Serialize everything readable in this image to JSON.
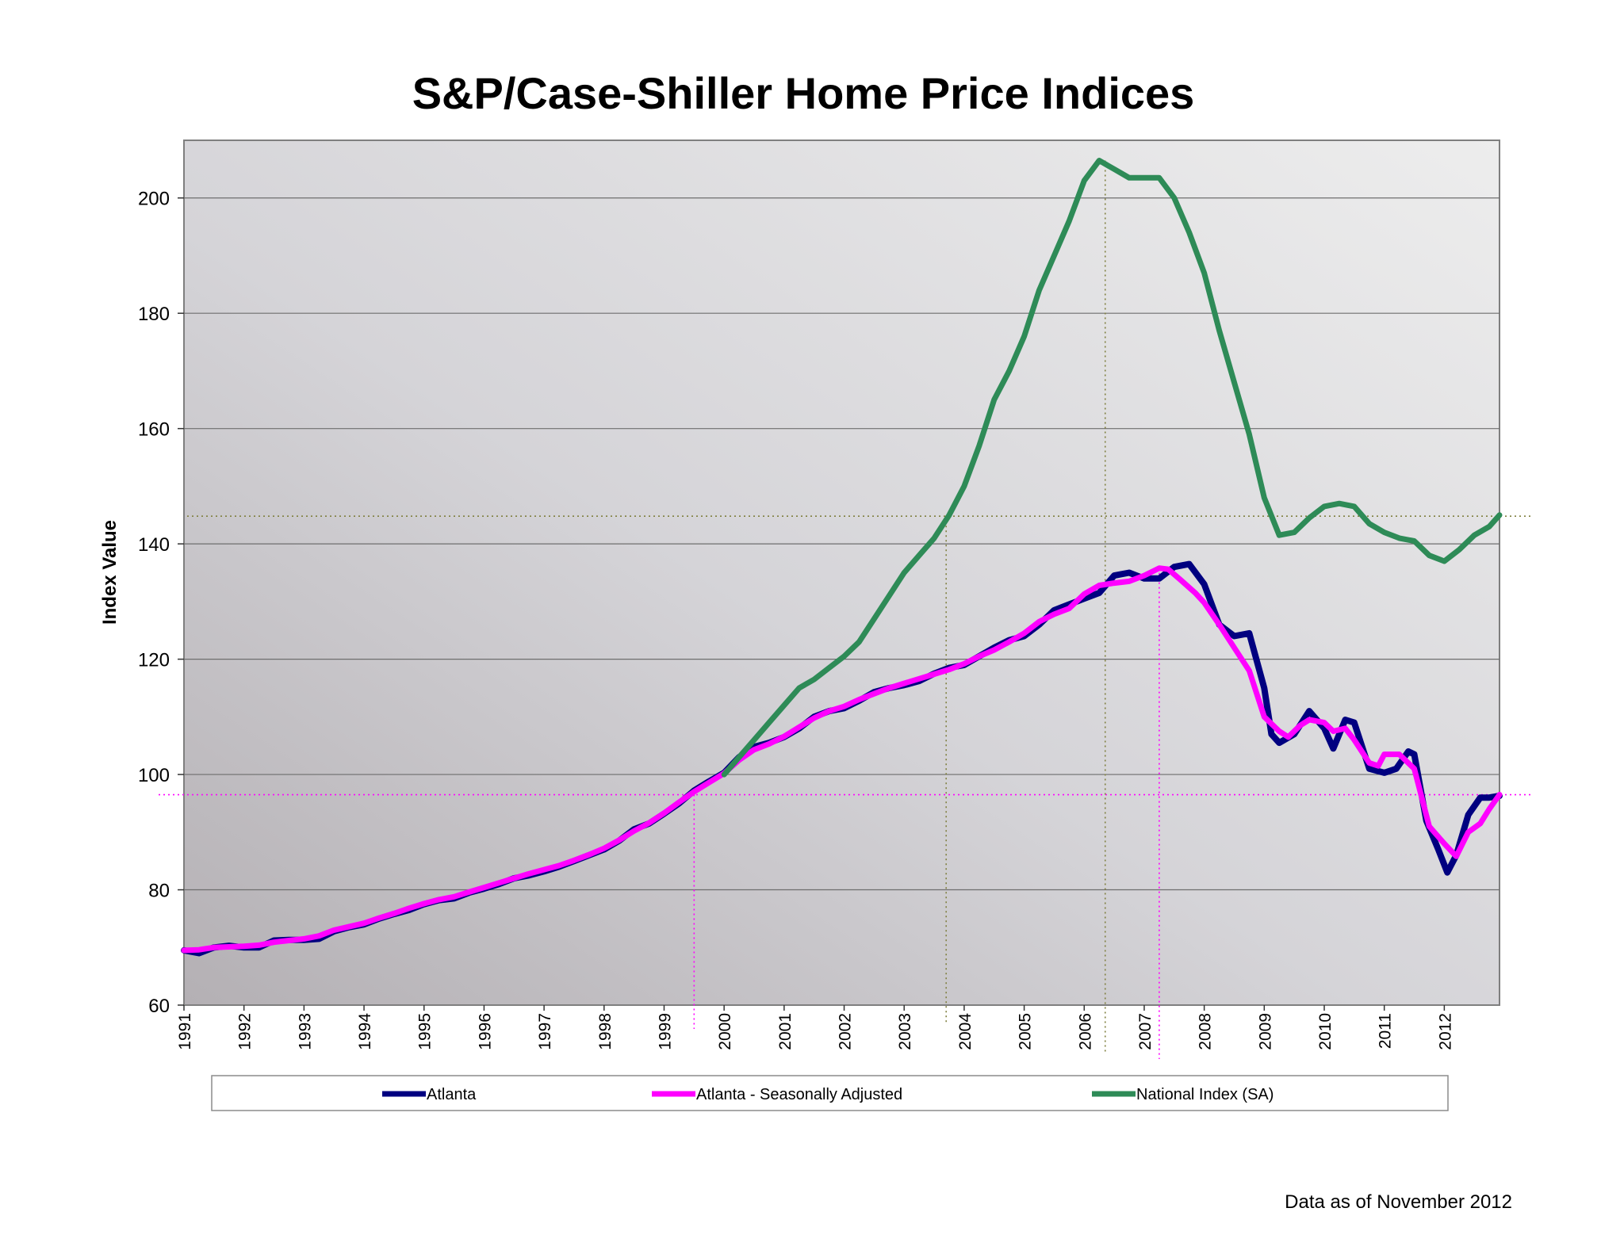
{
  "chart_data": {
    "type": "line",
    "title": "S&P/Case-Shiller Home Price Indices",
    "xlabel": "",
    "ylabel": "Index Value",
    "ylim": [
      60,
      210
    ],
    "xlim": [
      1991,
      2012.92
    ],
    "yticks": [
      60,
      80,
      100,
      120,
      140,
      160,
      180,
      200
    ],
    "xticks": [
      "1991",
      "1992",
      "1993",
      "1994",
      "1995",
      "1996",
      "1997",
      "1998",
      "1999",
      "2000",
      "2001",
      "2002",
      "2003",
      "2004",
      "2005",
      "2006",
      "2007",
      "2008",
      "2009",
      "2010",
      "2011",
      "2012"
    ],
    "grid": true,
    "legend_position": "bottom",
    "note": "Data as of November 2012",
    "series": [
      {
        "name": "Atlanta",
        "color": "#000080",
        "points": [
          [
            1991,
            69.5
          ],
          [
            1991.25,
            69
          ],
          [
            1991.5,
            70
          ],
          [
            1991.75,
            70.3
          ],
          [
            1992,
            70
          ],
          [
            1992.25,
            70
          ],
          [
            1992.5,
            71.2
          ],
          [
            1992.75,
            71.3
          ],
          [
            1993,
            71.3
          ],
          [
            1993.25,
            71.5
          ],
          [
            1993.5,
            72.8
          ],
          [
            1993.75,
            73.5
          ],
          [
            1994,
            74
          ],
          [
            1994.25,
            75
          ],
          [
            1994.5,
            75.8
          ],
          [
            1994.75,
            76.5
          ],
          [
            1995,
            77.5
          ],
          [
            1995.25,
            78.2
          ],
          [
            1995.5,
            78.5
          ],
          [
            1995.75,
            79.5
          ],
          [
            1996,
            80.2
          ],
          [
            1996.25,
            81
          ],
          [
            1996.5,
            82
          ],
          [
            1996.75,
            82.5
          ],
          [
            1997,
            83.2
          ],
          [
            1997.25,
            84
          ],
          [
            1997.5,
            85
          ],
          [
            1997.75,
            86
          ],
          [
            1998,
            87
          ],
          [
            1998.25,
            88.5
          ],
          [
            1998.5,
            90.5
          ],
          [
            1998.75,
            91.5
          ],
          [
            1999,
            93.2
          ],
          [
            1999.25,
            95
          ],
          [
            1999.5,
            97.2
          ],
          [
            1999.75,
            98.8
          ],
          [
            2000,
            100.3
          ],
          [
            2000.25,
            103
          ],
          [
            2000.5,
            104.8
          ],
          [
            2000.75,
            105.5
          ],
          [
            2001,
            106.5
          ],
          [
            2001.25,
            108
          ],
          [
            2001.5,
            110
          ],
          [
            2001.75,
            111
          ],
          [
            2002,
            111.5
          ],
          [
            2002.25,
            112.8
          ],
          [
            2002.5,
            114.3
          ],
          [
            2002.75,
            115
          ],
          [
            2003,
            115.5
          ],
          [
            2003.25,
            116.2
          ],
          [
            2003.5,
            117.5
          ],
          [
            2003.75,
            118.5
          ],
          [
            2004,
            119
          ],
          [
            2004.25,
            120.5
          ],
          [
            2004.5,
            122
          ],
          [
            2004.75,
            123.3
          ],
          [
            2005,
            124
          ],
          [
            2005.25,
            126
          ],
          [
            2005.5,
            128.5
          ],
          [
            2005.75,
            129.5
          ],
          [
            2006,
            130.5
          ],
          [
            2006.25,
            131.5
          ],
          [
            2006.5,
            134.5
          ],
          [
            2006.75,
            135
          ],
          [
            2007,
            134
          ],
          [
            2007.25,
            134
          ],
          [
            2007.5,
            136
          ],
          [
            2007.75,
            136.5
          ],
          [
            2008,
            133
          ],
          [
            2008.25,
            126
          ],
          [
            2008.5,
            124
          ],
          [
            2008.75,
            124.5
          ],
          [
            2009,
            115
          ],
          [
            2009.12,
            107
          ],
          [
            2009.25,
            105.5
          ],
          [
            2009.5,
            107
          ],
          [
            2009.75,
            111
          ],
          [
            2010,
            108
          ],
          [
            2010.15,
            104.5
          ],
          [
            2010.35,
            109.5
          ],
          [
            2010.5,
            109
          ],
          [
            2010.75,
            101
          ],
          [
            2011,
            100.3
          ],
          [
            2011.2,
            101
          ],
          [
            2011.4,
            104
          ],
          [
            2011.5,
            103.5
          ],
          [
            2011.7,
            92
          ],
          [
            2011.9,
            87
          ],
          [
            2012.05,
            83
          ],
          [
            2012.2,
            86
          ],
          [
            2012.4,
            93
          ],
          [
            2012.6,
            96
          ],
          [
            2012.75,
            96
          ],
          [
            2012.92,
            96.3
          ]
        ]
      },
      {
        "name": "Atlanta - Seasonally Adjusted",
        "color": "#ff00ff",
        "points": [
          [
            1991,
            69.5
          ],
          [
            1991.25,
            69.6
          ],
          [
            1991.5,
            70
          ],
          [
            1991.75,
            70.1
          ],
          [
            1992,
            70.2
          ],
          [
            1992.25,
            70.4
          ],
          [
            1992.5,
            70.9
          ],
          [
            1992.75,
            71.2
          ],
          [
            1993,
            71.5
          ],
          [
            1993.25,
            72
          ],
          [
            1993.5,
            73
          ],
          [
            1993.75,
            73.6
          ],
          [
            1994,
            74.2
          ],
          [
            1994.25,
            75.1
          ],
          [
            1994.5,
            75.9
          ],
          [
            1994.75,
            76.8
          ],
          [
            1995,
            77.6
          ],
          [
            1995.25,
            78.3
          ],
          [
            1995.5,
            78.8
          ],
          [
            1995.75,
            79.6
          ],
          [
            1996,
            80.4
          ],
          [
            1996.25,
            81.2
          ],
          [
            1996.5,
            82
          ],
          [
            1996.75,
            82.8
          ],
          [
            1997,
            83.5
          ],
          [
            1997.25,
            84.2
          ],
          [
            1997.5,
            85.1
          ],
          [
            1997.75,
            86.1
          ],
          [
            1998,
            87.2
          ],
          [
            1998.25,
            88.6
          ],
          [
            1998.5,
            90.2
          ],
          [
            1998.75,
            91.6
          ],
          [
            1999,
            93.3
          ],
          [
            1999.25,
            95.2
          ],
          [
            1999.5,
            97
          ],
          [
            1999.75,
            98.6
          ],
          [
            2000,
            100.2
          ],
          [
            2000.25,
            102.5
          ],
          [
            2000.5,
            104.3
          ],
          [
            2000.75,
            105.3
          ],
          [
            2001,
            106.6
          ],
          [
            2001.25,
            108.2
          ],
          [
            2001.5,
            109.8
          ],
          [
            2001.75,
            111
          ],
          [
            2002,
            111.8
          ],
          [
            2002.25,
            113
          ],
          [
            2002.5,
            114
          ],
          [
            2002.75,
            115
          ],
          [
            2003,
            115.8
          ],
          [
            2003.25,
            116.6
          ],
          [
            2003.5,
            117.4
          ],
          [
            2003.75,
            118.2
          ],
          [
            2004,
            119.2
          ],
          [
            2004.25,
            120.5
          ],
          [
            2004.5,
            121.6
          ],
          [
            2004.75,
            123
          ],
          [
            2005,
            124.5
          ],
          [
            2005.25,
            126.5
          ],
          [
            2005.5,
            127.8
          ],
          [
            2005.75,
            128.8
          ],
          [
            2006,
            131.3
          ],
          [
            2006.25,
            132.8
          ],
          [
            2006.5,
            133.2
          ],
          [
            2006.75,
            133.5
          ],
          [
            2007,
            134.5
          ],
          [
            2007.25,
            135.8
          ],
          [
            2007.4,
            135.6
          ],
          [
            2007.6,
            133.8
          ],
          [
            2007.85,
            131.5
          ],
          [
            2008,
            129.8
          ],
          [
            2008.25,
            126
          ],
          [
            2008.5,
            122
          ],
          [
            2008.75,
            118
          ],
          [
            2009,
            110
          ],
          [
            2009.25,
            107.5
          ],
          [
            2009.4,
            106.5
          ],
          [
            2009.6,
            108.5
          ],
          [
            2009.75,
            109.5
          ],
          [
            2010,
            109
          ],
          [
            2010.15,
            107.5
          ],
          [
            2010.35,
            108
          ],
          [
            2010.5,
            106
          ],
          [
            2010.75,
            102
          ],
          [
            2010.9,
            101.5
          ],
          [
            2011,
            103.5
          ],
          [
            2011.25,
            103.5
          ],
          [
            2011.5,
            101
          ],
          [
            2011.75,
            91
          ],
          [
            2012,
            88
          ],
          [
            2012.2,
            85.8
          ],
          [
            2012.4,
            90
          ],
          [
            2012.6,
            91.5
          ],
          [
            2012.75,
            94
          ],
          [
            2012.92,
            96.5
          ]
        ]
      },
      {
        "name": "National Index (SA)",
        "color": "#2e8b57",
        "points": [
          [
            2000,
            100
          ],
          [
            2000.25,
            103
          ],
          [
            2000.5,
            106
          ],
          [
            2000.75,
            109
          ],
          [
            2001,
            112
          ],
          [
            2001.25,
            115
          ],
          [
            2001.5,
            116.5
          ],
          [
            2001.75,
            118.5
          ],
          [
            2002,
            120.5
          ],
          [
            2002.25,
            123
          ],
          [
            2002.5,
            127
          ],
          [
            2002.75,
            131
          ],
          [
            2003,
            135
          ],
          [
            2003.25,
            138
          ],
          [
            2003.5,
            141
          ],
          [
            2003.75,
            145
          ],
          [
            2004,
            150
          ],
          [
            2004.25,
            157
          ],
          [
            2004.5,
            165
          ],
          [
            2004.75,
            170
          ],
          [
            2005,
            176
          ],
          [
            2005.25,
            184
          ],
          [
            2005.5,
            190
          ],
          [
            2005.75,
            196
          ],
          [
            2006,
            203
          ],
          [
            2006.25,
            206.5
          ],
          [
            2006.5,
            205
          ],
          [
            2006.75,
            203.5
          ],
          [
            2007,
            203.5
          ],
          [
            2007.25,
            203.5
          ],
          [
            2007.5,
            200
          ],
          [
            2007.75,
            194
          ],
          [
            2008,
            187
          ],
          [
            2008.25,
            177
          ],
          [
            2008.5,
            168
          ],
          [
            2008.75,
            159
          ],
          [
            2009,
            148
          ],
          [
            2009.25,
            141.5
          ],
          [
            2009.5,
            142
          ],
          [
            2009.75,
            144.5
          ],
          [
            2010,
            146.5
          ],
          [
            2010.25,
            147
          ],
          [
            2010.5,
            146.5
          ],
          [
            2010.75,
            143.5
          ],
          [
            2011,
            142
          ],
          [
            2011.25,
            141
          ],
          [
            2011.5,
            140.5
          ],
          [
            2011.75,
            138
          ],
          [
            2012,
            137
          ],
          [
            2012.25,
            139
          ],
          [
            2012.5,
            141.5
          ],
          [
            2012.75,
            143
          ],
          [
            2012.92,
            145
          ]
        ]
      }
    ],
    "reference_lines": {
      "national_latest": {
        "value": 144.8,
        "color": "#808040"
      },
      "atlanta_latest": {
        "value": 96.5,
        "color": "#ff00ff"
      },
      "atlanta_cross_year": 1999.5,
      "national_cross_year": 2003.7,
      "national_peak_year": 2006.35,
      "atlanta_peak_year": 2007.25
    }
  }
}
